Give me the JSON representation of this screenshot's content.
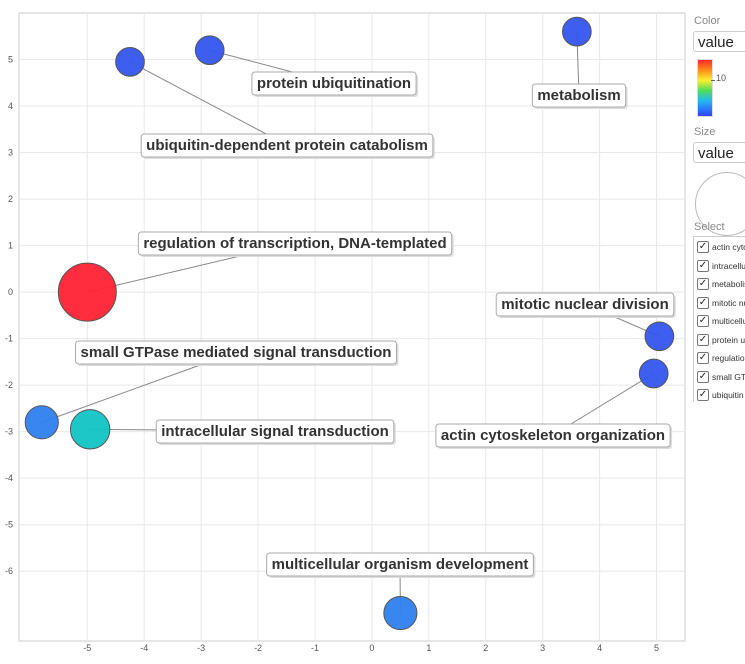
{
  "chart_data": {
    "type": "scatter",
    "title": "",
    "xlabel": "",
    "ylabel": "",
    "xlim": [
      -6.2,
      5.5
    ],
    "ylim": [
      -7.5,
      6
    ],
    "x_ticks": [
      -5,
      -4,
      -3,
      -2,
      -1,
      0,
      1,
      2,
      3,
      4,
      5
    ],
    "y_ticks": [
      -6,
      -5,
      -4,
      -3,
      -2,
      -1,
      0,
      1,
      2,
      3,
      4,
      5
    ],
    "grid": true,
    "legend_position": "right",
    "points": [
      {
        "label": "protein ubiquitination",
        "x": -2.85,
        "y": 5.2,
        "value": 2,
        "color": "#3355ee"
      },
      {
        "label": "ubiquitin-dependent protein catabolism",
        "x": -4.25,
        "y": 4.95,
        "value": 2,
        "color": "#3355ee"
      },
      {
        "label": "metabolism",
        "x": 3.6,
        "y": 5.6,
        "value": 2,
        "color": "#3355ee"
      },
      {
        "label": "regulation of transcription, DNA-templated",
        "x": -5.0,
        "y": 0.0,
        "value": 15,
        "color": "#ff2233"
      },
      {
        "label": "mitotic nuclear division",
        "x": 5.05,
        "y": -0.95,
        "value": 2,
        "color": "#3355ee"
      },
      {
        "label": "small GTPase mediated signal transduction",
        "x": -5.8,
        "y": -2.8,
        "value": 3,
        "color": "#2f7ff0"
      },
      {
        "label": "intracellular signal transduction",
        "x": -4.95,
        "y": -2.95,
        "value": 5,
        "color": "#11c4c4"
      },
      {
        "label": "actin cytoskeleton organization",
        "x": 4.95,
        "y": -1.75,
        "value": 2,
        "color": "#3355ee"
      },
      {
        "label": "multicellular organism development",
        "x": 0.5,
        "y": -6.9,
        "value": 3,
        "color": "#2f7ff0"
      }
    ]
  },
  "legend": {
    "color_heading": "Color",
    "color_select": "value",
    "color_tick": "10",
    "size_heading": "Size",
    "size_select": "value",
    "select_heading": "Select",
    "select_items": [
      {
        "label": "actin cyto",
        "checked": true
      },
      {
        "label": "intracellul",
        "checked": true
      },
      {
        "label": "metabolis",
        "checked": true
      },
      {
        "label": "mitotic nu",
        "checked": true
      },
      {
        "label": "multicellu",
        "checked": true
      },
      {
        "label": "protein u",
        "checked": true
      },
      {
        "label": "regulation",
        "checked": true
      },
      {
        "label": "small GT",
        "checked": true
      },
      {
        "label": "ubiquitin",
        "checked": true
      }
    ]
  }
}
